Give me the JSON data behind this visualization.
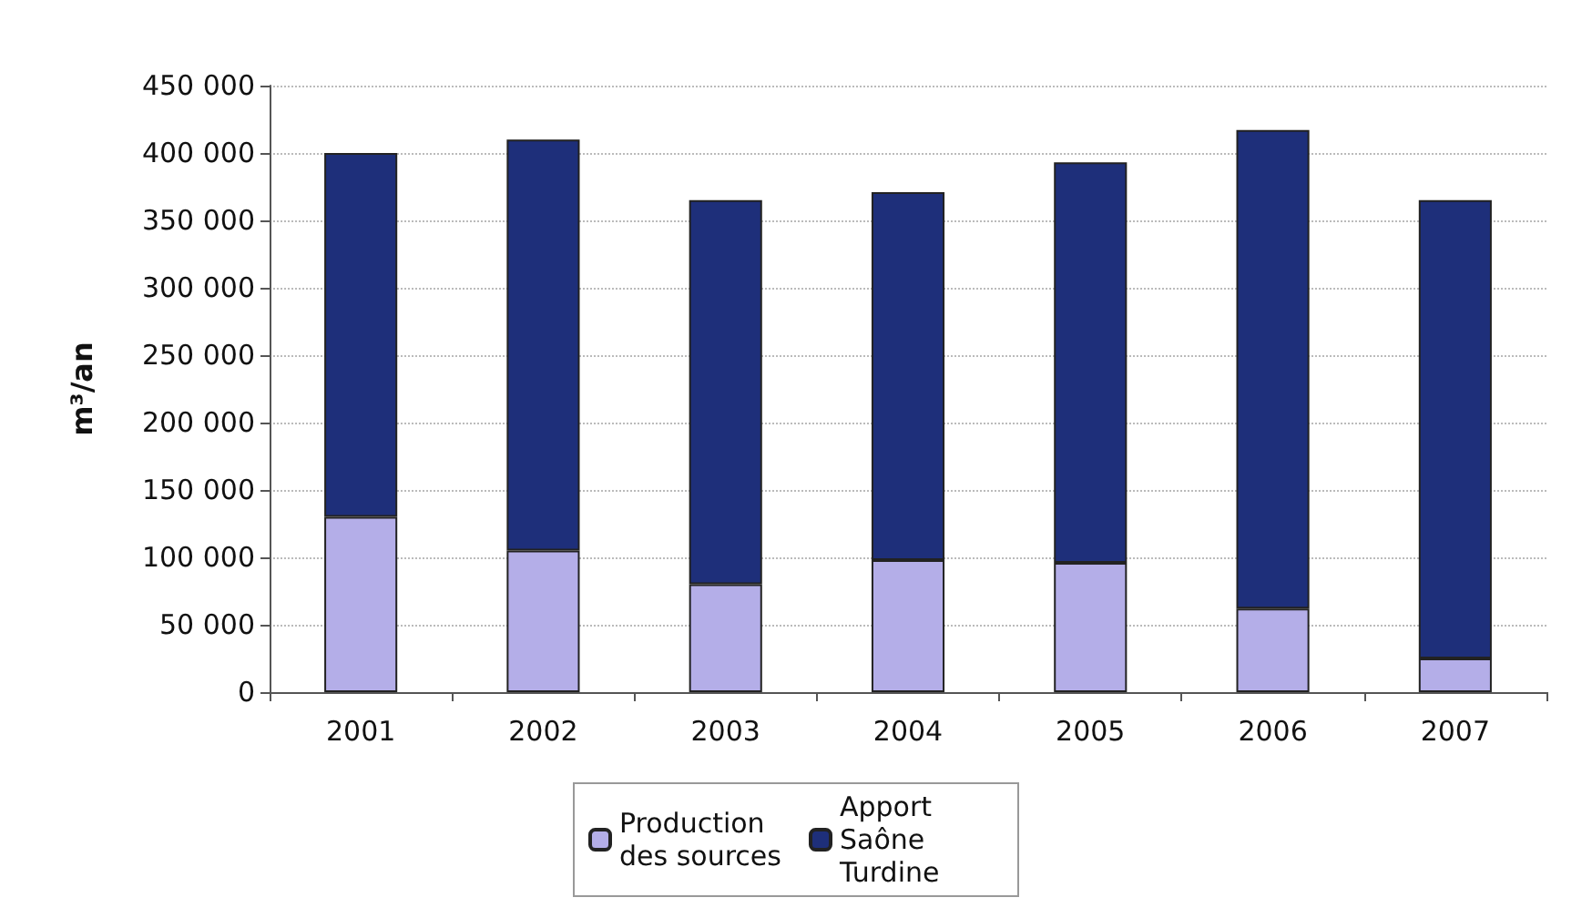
{
  "chart_data": {
    "type": "bar",
    "ylabel": "m³/an",
    "stacked": true,
    "categories": [
      "2001",
      "2002",
      "2003",
      "2004",
      "2005",
      "2006",
      "2007"
    ],
    "series": [
      {
        "name": "Production des sources",
        "color": "#b4aee8",
        "values": [
          130000,
          105000,
          80000,
          98000,
          96000,
          62000,
          25000
        ]
      },
      {
        "name": "Apport Saône Turdine",
        "color": "#1e2f7a",
        "values": [
          270000,
          305000,
          285000,
          273000,
          297000,
          355000,
          340000
        ]
      }
    ],
    "ylim": [
      0,
      450000
    ],
    "yticks": [
      0,
      50000,
      100000,
      150000,
      200000,
      250000,
      300000,
      350000,
      400000,
      450000
    ],
    "grid": "y",
    "legend": "bottom"
  }
}
